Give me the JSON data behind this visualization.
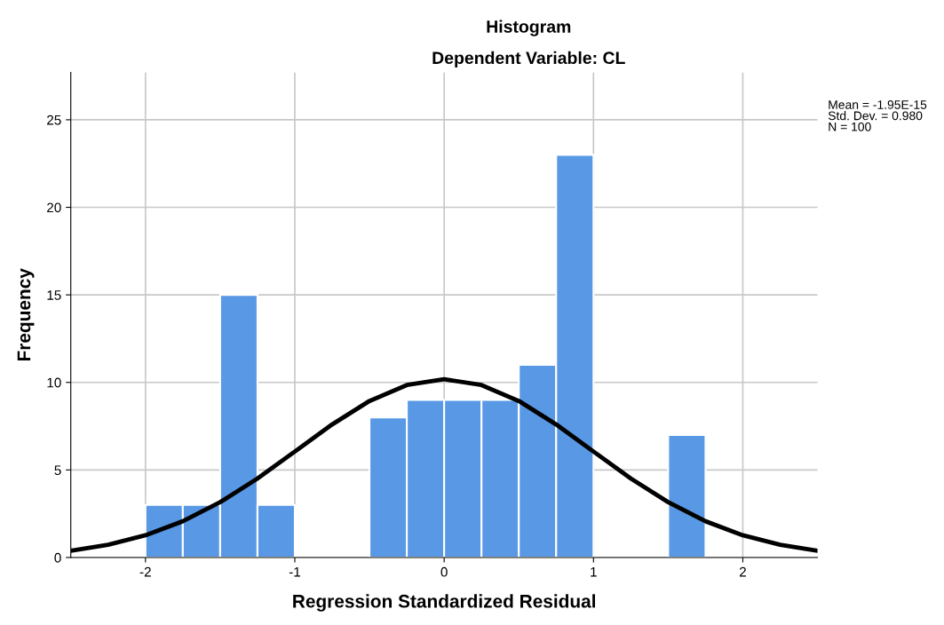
{
  "chart_data": {
    "type": "histogram",
    "title": "Histogram",
    "subtitle": "Dependent Variable: CL",
    "xlabel": "Regression Standardized Residual",
    "ylabel": "Frequency",
    "bins": [
      -2,
      -1.75,
      -1.5,
      -1.25,
      -1,
      -0.75,
      -0.5,
      -0.25,
      0,
      0.25,
      0.5,
      0.75,
      1,
      1.25,
      1.5,
      1.75
    ],
    "values": [
      3,
      3,
      15,
      3,
      0,
      0,
      8,
      9,
      9,
      9,
      11,
      23,
      0,
      0,
      7
    ],
    "color": "#5898e4",
    "series": [
      {
        "type": "line",
        "color": "#000000",
        "x": [
          -2.5,
          -2.25,
          -2,
          -1.75,
          -1.5,
          -1.25,
          -1,
          -0.75,
          -0.5,
          -0.25,
          0,
          0.25,
          0.5,
          0.75,
          1,
          1.25,
          1.5,
          1.75,
          2,
          2.25,
          2.5
        ],
        "values": [
          0.39,
          0.73,
          1.27,
          2.07,
          3.16,
          4.51,
          6.05,
          7.6,
          8.94,
          9.85,
          10.18,
          9.85,
          8.94,
          7.6,
          6.05,
          4.51,
          3.16,
          2.07,
          1.27,
          0.73,
          0.39
        ]
      }
    ],
    "xlim": [
      -2.5,
      2.5
    ],
    "xticks": [
      -2,
      -1,
      0,
      1,
      2
    ],
    "ylim": [
      0,
      27.7
    ],
    "yticks": [
      0,
      5,
      10,
      15,
      20,
      25
    ],
    "grid": true,
    "annotations": [
      "Mean = -1.95E-15\nStd. Dev. = 0.980\nN = 100"
    ]
  }
}
